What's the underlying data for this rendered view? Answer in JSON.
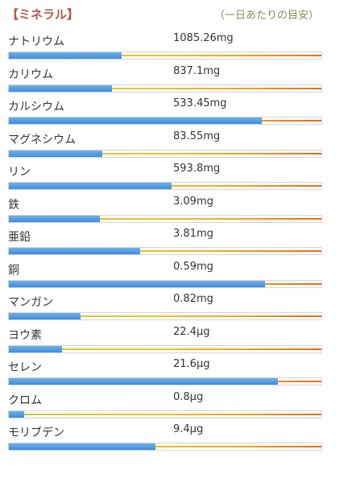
{
  "header": {
    "title": "【ミネラル】",
    "note": "（一日あたりの目安）"
  },
  "minerals": [
    {
      "name": "ナトリウム",
      "amount": "1085.26mg",
      "level": 0.36
    },
    {
      "name": "カリウム",
      "amount": "837.1mg",
      "level": 0.33
    },
    {
      "name": "カルシウム",
      "amount": "533.45mg",
      "level": 0.81
    },
    {
      "name": "マグネシウム",
      "amount": "83.55mg",
      "level": 0.3
    },
    {
      "name": "リン",
      "amount": "593.8mg",
      "level": 0.52
    },
    {
      "name": "鉄",
      "amount": "3.09mg",
      "level": 0.29
    },
    {
      "name": "亜鉛",
      "amount": "3.81mg",
      "level": 0.42
    },
    {
      "name": "銅",
      "amount": "0.59mg",
      "level": 0.82
    },
    {
      "name": "マンガン",
      "amount": "0.82mg",
      "level": 0.23
    },
    {
      "name": "ヨウ素",
      "amount": "22.4μg",
      "level": 0.17
    },
    {
      "name": "セレン",
      "amount": "21.6μg",
      "level": 0.86
    },
    {
      "name": "クロム",
      "amount": "0.8μg",
      "level": 0.05
    },
    {
      "name": "モリブデン",
      "amount": "9.4μg",
      "level": 0.47
    }
  ]
}
